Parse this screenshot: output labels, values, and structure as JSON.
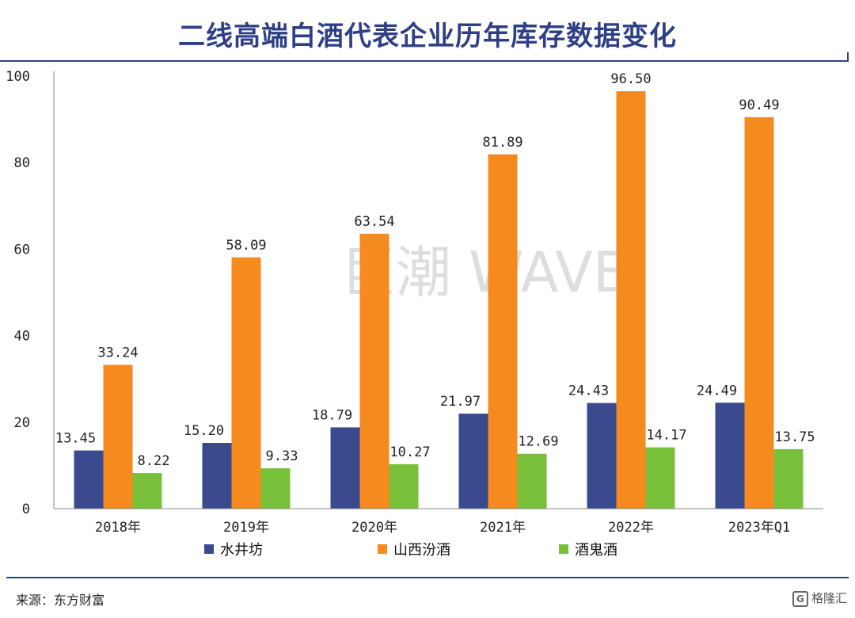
{
  "title": "二线高端白酒代表企业历年库存数据变化",
  "source": "来源：东方财富",
  "watermark": "巨潮 WAVE",
  "brand": {
    "icon": "G",
    "text": "格隆汇"
  },
  "chart_data": {
    "type": "bar",
    "categories": [
      "2018年",
      "2019年",
      "2020年",
      "2021年",
      "2022年",
      "2023年Q1"
    ],
    "series": [
      {
        "name": "水井坊",
        "color": "#3b4a8f",
        "values": [
          13.45,
          15.2,
          18.79,
          21.97,
          24.43,
          24.49
        ],
        "labels": [
          "13.45",
          "15.20",
          "18.79",
          "21.97",
          "24.43",
          "24.49"
        ]
      },
      {
        "name": "山西汾酒",
        "color": "#f58a1f",
        "values": [
          33.24,
          58.09,
          63.54,
          81.89,
          96.5,
          90.49
        ],
        "labels": [
          "33.24",
          "58.09",
          "63.54",
          "81.89",
          "96.50",
          "90.49"
        ]
      },
      {
        "name": "酒鬼酒",
        "color": "#79c03a",
        "values": [
          8.22,
          9.33,
          10.27,
          12.69,
          14.17,
          13.75
        ],
        "labels": [
          "8.22",
          "9.33",
          "10.27",
          "12.69",
          "14.17",
          "13.75"
        ]
      }
    ],
    "ylim": [
      0,
      100
    ],
    "yticks": [
      0,
      20,
      40,
      60,
      80,
      100
    ],
    "legend_position": "bottom"
  }
}
